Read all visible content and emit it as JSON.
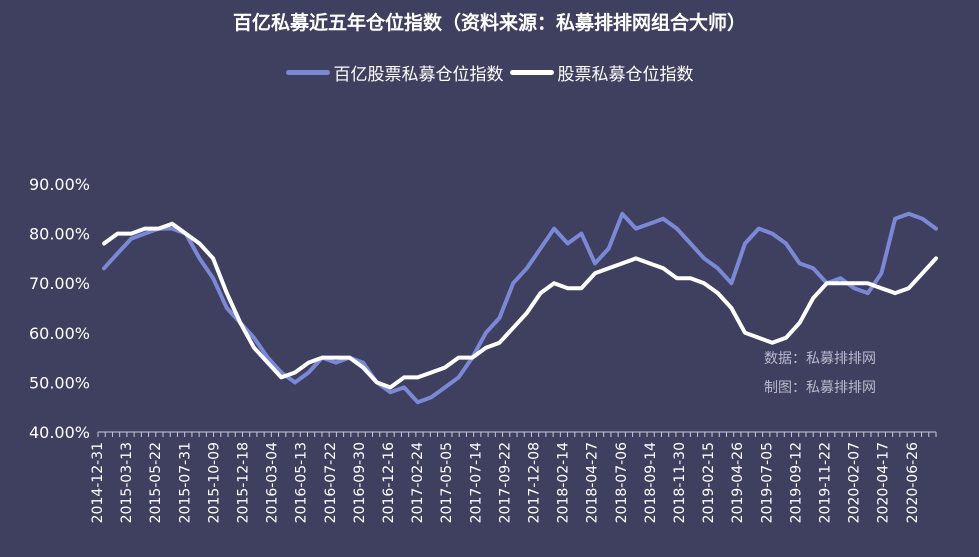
{
  "title": "百亿私募近五年仓位指数（资料来源：私募排排网组合大师）",
  "watermark": {
    "line1": "数据：私募排排网",
    "line2": "制图：私募排排网"
  },
  "colors": {
    "background": "#3f3f5f",
    "series1": "#7b88d6",
    "series2": "#ffffff",
    "axis": "#c8c8d8"
  },
  "chart_data": {
    "type": "line",
    "ylim": [
      40,
      90
    ],
    "y_ticks": [
      40,
      50,
      60,
      70,
      80,
      90
    ],
    "y_tick_labels": [
      "40.00%",
      "50.00%",
      "60.00%",
      "70.00%",
      "80.00%",
      "90.00%"
    ],
    "legend_position": "top-center",
    "x_tick_labels": [
      "2014-12-31",
      "2015-03-13",
      "2015-05-22",
      "2015-07-31",
      "2015-10-09",
      "2015-12-18",
      "2016-03-04",
      "2016-05-13",
      "2016-07-22",
      "2016-09-30",
      "2016-12-16",
      "2017-02-24",
      "2017-05-05",
      "2017-07-14",
      "2017-09-22",
      "2017-12-08",
      "2018-02-14",
      "2018-04-27",
      "2018-07-06",
      "2018-09-14",
      "2018-11-30",
      "2019-02-15",
      "2019-04-26",
      "2019-07-05",
      "2019-09-12",
      "2019-11-22",
      "2020-02-07",
      "2020-04-17",
      "2020-06-26"
    ],
    "series": [
      {
        "name": "百亿股票私募仓位指数",
        "values": [
          73,
          76,
          79,
          80,
          81,
          81,
          80,
          75,
          71,
          65,
          62,
          59,
          55,
          52,
          50,
          52,
          55,
          54,
          55,
          54,
          50,
          48,
          49,
          46,
          47,
          49,
          51,
          55,
          60,
          63,
          70,
          73,
          77,
          81,
          78,
          80,
          74,
          77,
          84,
          81,
          82,
          83,
          81,
          78,
          75,
          73,
          70,
          78,
          81,
          80,
          78,
          74,
          73,
          70,
          71,
          69,
          68,
          72,
          83,
          84,
          83,
          81
        ]
      },
      {
        "name": "股票私募仓位指数",
        "values": [
          78,
          80,
          80,
          81,
          81,
          82,
          80,
          78,
          75,
          68,
          62,
          57,
          54,
          51,
          52,
          54,
          55,
          55,
          55,
          53,
          50,
          49,
          51,
          51,
          52,
          53,
          55,
          55,
          57,
          58,
          61,
          64,
          68,
          70,
          69,
          69,
          72,
          73,
          74,
          75,
          74,
          73,
          71,
          71,
          70,
          68,
          65,
          60,
          59,
          58,
          59,
          62,
          67,
          70,
          70,
          70,
          70,
          69,
          68,
          69,
          72,
          75
        ]
      }
    ]
  }
}
